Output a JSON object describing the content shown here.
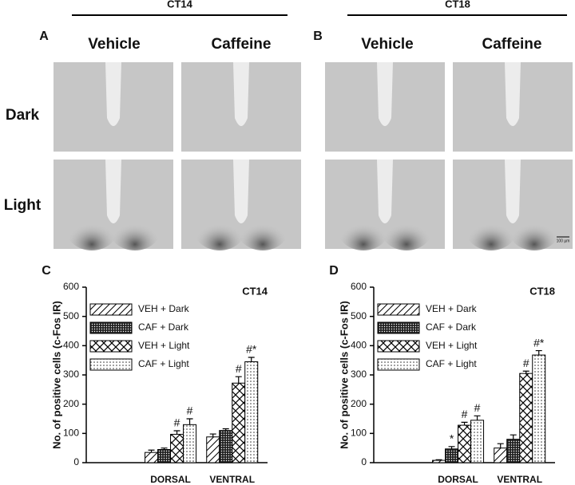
{
  "figure": {
    "headers": [
      "CT14",
      "CT18"
    ],
    "panels": [
      "A",
      "B"
    ],
    "columns": [
      "Vehicle",
      "Caffeine"
    ],
    "rows": [
      "Dark",
      "Light"
    ],
    "scale_bar": "100 µm"
  },
  "chart_data": [
    {
      "type": "bar",
      "panel": "C",
      "title": "CT14",
      "ylabel": "No. of positive cells (c-Fos IR)",
      "categories": [
        "DORSAL",
        "VENTRAL"
      ],
      "ylim": [
        0,
        600
      ],
      "yticks": [
        0,
        100,
        200,
        300,
        400,
        500,
        600
      ],
      "legend": "upper left",
      "series": [
        {
          "name": "VEH + Dark",
          "pattern": "hatch",
          "values": [
            35,
            88
          ],
          "errors": [
            8,
            10
          ],
          "annotations": [
            null,
            null
          ]
        },
        {
          "name": "CAF + Dark",
          "pattern": "dense-dots",
          "values": [
            45,
            110
          ],
          "errors": [
            5,
            6
          ],
          "annotations": [
            null,
            null
          ]
        },
        {
          "name": "VEH + Light",
          "pattern": "cross",
          "values": [
            97,
            272
          ],
          "errors": [
            12,
            22
          ],
          "annotations": [
            "#",
            "#"
          ]
        },
        {
          "name": "CAF + Light",
          "pattern": "dots",
          "values": [
            130,
            345
          ],
          "errors": [
            20,
            15
          ],
          "annotations": [
            "#",
            "#*"
          ]
        }
      ]
    },
    {
      "type": "bar",
      "panel": "D",
      "title": "CT18",
      "ylabel": "No. of positive cells (c-Fos IR)",
      "categories": [
        "DORSAL",
        "VENTRAL"
      ],
      "ylim": [
        0,
        600
      ],
      "yticks": [
        0,
        100,
        200,
        300,
        400,
        500,
        600
      ],
      "legend": "upper left",
      "series": [
        {
          "name": "VEH + Dark",
          "pattern": "hatch",
          "values": [
            8,
            50
          ],
          "errors": [
            2,
            15
          ],
          "annotations": [
            null,
            null
          ]
        },
        {
          "name": "CAF + Dark",
          "pattern": "dense-dots",
          "values": [
            47,
            80
          ],
          "errors": [
            8,
            15
          ],
          "annotations": [
            "*",
            null
          ]
        },
        {
          "name": "VEH + Light",
          "pattern": "cross",
          "values": [
            128,
            305
          ],
          "errors": [
            10,
            8
          ],
          "annotations": [
            "#",
            "#"
          ]
        },
        {
          "name": "CAF + Light",
          "pattern": "dots",
          "values": [
            145,
            368
          ],
          "errors": [
            15,
            15
          ],
          "annotations": [
            "#",
            "#*"
          ]
        }
      ]
    }
  ]
}
